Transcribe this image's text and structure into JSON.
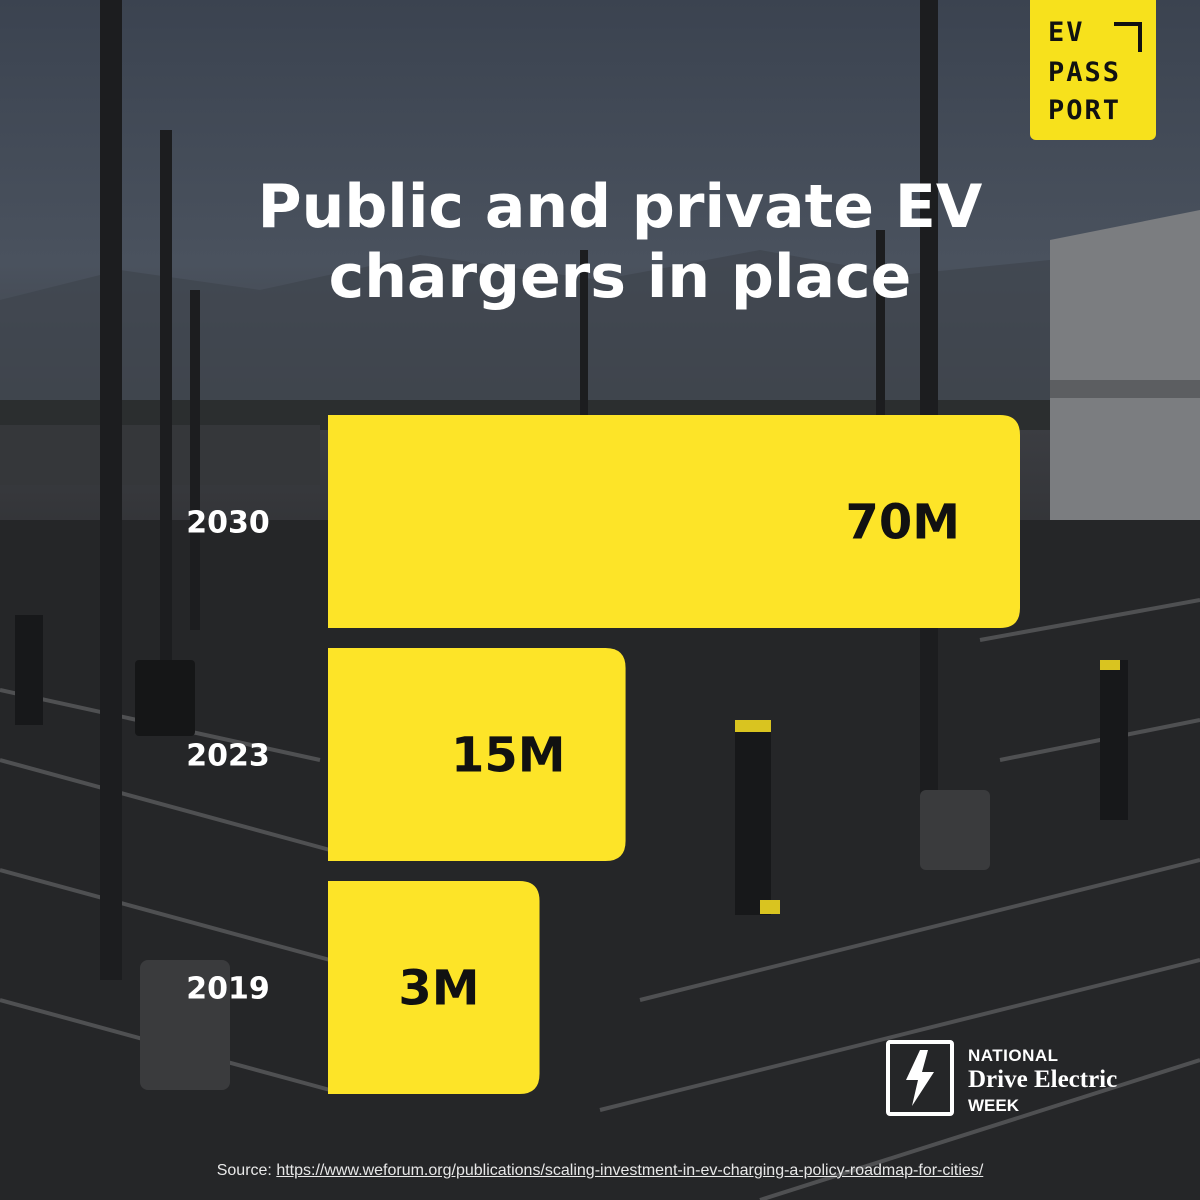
{
  "logo": {
    "lines": [
      "EV",
      "PASS",
      "PORT"
    ]
  },
  "title_lines": [
    "Public and private EV",
    "chargers in place"
  ],
  "chart_data": {
    "type": "bar",
    "orientation": "horizontal",
    "categories": [
      "2030",
      "2023",
      "2019"
    ],
    "values": [
      70,
      15,
      3
    ],
    "value_labels": [
      "70M",
      "15M",
      "3M"
    ],
    "unit": "M",
    "title": "Public and private EV chargers in place",
    "xlabel": "",
    "ylabel": "",
    "grid": false,
    "bar_color": "#fde428"
  },
  "badge": {
    "line1": "NATIONAL",
    "line2": "Drive Electric",
    "line3": "WEEK"
  },
  "source": {
    "prefix": "Source: ",
    "link_text": "https://www.weforum.org/publications/scaling-investment-in-ev-charging-a-policy-roadmap-for-cities/"
  }
}
